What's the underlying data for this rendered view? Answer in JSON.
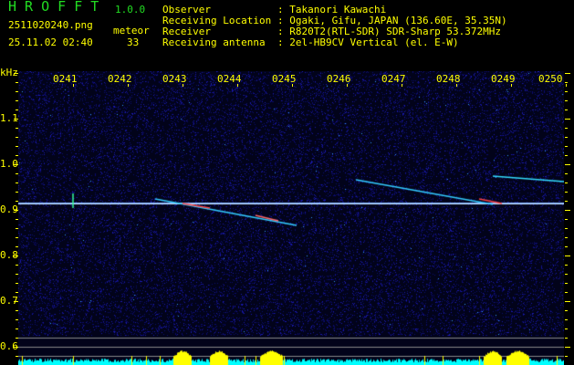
{
  "header": {
    "app_name": "H R O F F T",
    "version": "1.0.0",
    "filename": "2511020240.png",
    "datetime": "25.11.02 02:40",
    "meteor_label": "meteor",
    "meteor_count": "33"
  },
  "info": [
    {
      "label": "Observer",
      "value": ": Takanori Kawachi"
    },
    {
      "label": "Receiving Location",
      "value": ": Ogaki, Gifu, JAPAN (136.60E, 35.35N)"
    },
    {
      "label": "Receiver",
      "value": ": R820T2(RTL-SDR) SDR-Sharp 53.372MHz"
    },
    {
      "label": "Receiving antenna",
      "value": ": 2el-HB9CV Vertical (el. E-W)"
    }
  ],
  "axes": {
    "y_unit": "kHz",
    "y_ticks": [
      "1.1",
      "1.0",
      "0.9",
      "0.8",
      "0.7",
      "0.6"
    ],
    "x_ticks": [
      "0241",
      "0242",
      "0243",
      "0244",
      "0245",
      "0246",
      "0247",
      "0248",
      "0249",
      "0250"
    ]
  },
  "colors": {
    "text": "#ffff00",
    "title": "#22dd22",
    "background": "#02031a",
    "spectrum": "#00ffff",
    "signal": "#ff3333"
  }
}
